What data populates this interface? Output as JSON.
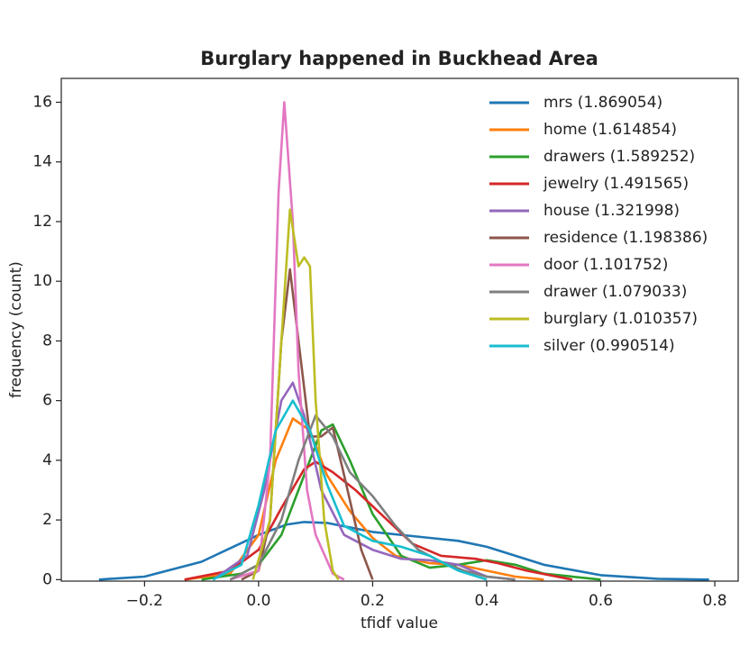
{
  "chart_data": {
    "type": "line",
    "title": "Burglary happened in Buckhead Area",
    "xlabel": "tfidf value",
    "ylabel": "frequency (count)",
    "xlim": [
      -0.346,
      0.841
    ],
    "ylim": [
      -0.05,
      16.8
    ],
    "xticks": [
      {
        "value": -0.2,
        "label": "−0.2"
      },
      {
        "value": 0,
        "label": "0.0"
      },
      0.2,
      0.4,
      0.6,
      0.8
    ],
    "yticks": [
      0,
      2,
      4,
      6,
      8,
      10,
      12,
      14,
      16
    ],
    "legend": "upper right",
    "series": [
      {
        "name": "mrs (1.869054)",
        "color": "#1f77b4",
        "x": [
          -0.28,
          -0.2,
          -0.1,
          0,
          0.05,
          0.08,
          0.12,
          0.2,
          0.3,
          0.35,
          0.4,
          0.5,
          0.6,
          0.7,
          0.79
        ],
        "values": [
          0,
          0.1,
          0.6,
          1.5,
          1.85,
          1.93,
          1.9,
          1.6,
          1.4,
          1.3,
          1.1,
          0.5,
          0.15,
          0.03,
          0
        ]
      },
      {
        "name": "home (1.614854)",
        "color": "#ff7f0e",
        "x": [
          -0.13,
          -0.05,
          0,
          0.03,
          0.06,
          0.09,
          0.12,
          0.16,
          0.2,
          0.24,
          0.3,
          0.35,
          0.4,
          0.45,
          0.5
        ],
        "values": [
          0,
          0.2,
          1.5,
          4,
          5.4,
          5.0,
          3.5,
          2.3,
          1.4,
          0.8,
          0.55,
          0.5,
          0.3,
          0.1,
          0
        ]
      },
      {
        "name": "drawers (1.589252)",
        "color": "#2ca02c",
        "x": [
          -0.1,
          -0.03,
          0,
          0.04,
          0.08,
          0.11,
          0.13,
          0.16,
          0.2,
          0.25,
          0.3,
          0.35,
          0.4,
          0.45,
          0.5,
          0.6
        ],
        "values": [
          0,
          0.2,
          0.5,
          1.5,
          3.5,
          5.0,
          5.2,
          4.0,
          2.2,
          0.8,
          0.4,
          0.5,
          0.65,
          0.5,
          0.2,
          0
        ]
      },
      {
        "name": "jewelry (1.491565)",
        "color": "#d62728",
        "x": [
          -0.13,
          -0.05,
          0,
          0.04,
          0.08,
          0.1,
          0.13,
          0.17,
          0.22,
          0.27,
          0.32,
          0.38,
          0.42,
          0.47,
          0.55
        ],
        "values": [
          0,
          0.3,
          1.0,
          2.4,
          3.7,
          3.95,
          3.6,
          3.0,
          2.1,
          1.2,
          0.8,
          0.7,
          0.55,
          0.3,
          0
        ]
      },
      {
        "name": "house (1.321998)",
        "color": "#9467bd",
        "x": [
          -0.08,
          -0.02,
          0.01,
          0.04,
          0.06,
          0.08,
          0.11,
          0.15,
          0.2,
          0.25,
          0.3,
          0.35,
          0.4,
          0.45
        ],
        "values": [
          0,
          0.8,
          3,
          6.0,
          6.6,
          5.5,
          3,
          1.5,
          1.0,
          0.7,
          0.65,
          0.5,
          0.1,
          0
        ]
      },
      {
        "name": "residence (1.198386)",
        "color": "#8c564b",
        "x": [
          -0.03,
          0,
          0.02,
          0.04,
          0.055,
          0.07,
          0.09,
          0.11,
          0.13,
          0.15,
          0.18,
          0.2
        ],
        "values": [
          0,
          0.3,
          2,
          8,
          10.4,
          8,
          4.8,
          4.8,
          5.1,
          3.5,
          1.0,
          0
        ]
      },
      {
        "name": "door (1.101752)",
        "color": "#e377c2",
        "x": [
          -0.05,
          0,
          0.02,
          0.035,
          0.045,
          0.06,
          0.07,
          0.085,
          0.1,
          0.13,
          0.15
        ],
        "values": [
          0,
          0.3,
          4,
          13,
          16,
          12,
          7,
          3,
          1.5,
          0.2,
          0
        ]
      },
      {
        "name": "drawer (1.079033)",
        "color": "#7f7f7f",
        "x": [
          -0.05,
          0,
          0.04,
          0.07,
          0.1,
          0.13,
          0.16,
          0.2,
          0.24,
          0.28,
          0.32,
          0.36,
          0.4,
          0.45
        ],
        "values": [
          0,
          0.5,
          2,
          4,
          5.5,
          4.8,
          3.6,
          2.8,
          1.8,
          1.0,
          0.6,
          0.3,
          0.1,
          0
        ]
      },
      {
        "name": "burglary (1.010357)",
        "color": "#bcbd22",
        "x": [
          -0.01,
          0.02,
          0.04,
          0.055,
          0.07,
          0.08,
          0.09,
          0.1,
          0.115,
          0.13,
          0.14
        ],
        "values": [
          0,
          2,
          8,
          12.4,
          10.5,
          10.8,
          10.5,
          6,
          2,
          0.3,
          0
        ]
      },
      {
        "name": "silver (0.990514)",
        "color": "#17becf",
        "x": [
          -0.08,
          -0.03,
          0,
          0.03,
          0.06,
          0.09,
          0.12,
          0.15,
          0.2,
          0.25,
          0.3,
          0.35,
          0.4
        ],
        "values": [
          0,
          0.5,
          2.5,
          5,
          6.0,
          5,
          3.2,
          1.8,
          1.3,
          1.1,
          0.8,
          0.3,
          0
        ]
      }
    ]
  }
}
